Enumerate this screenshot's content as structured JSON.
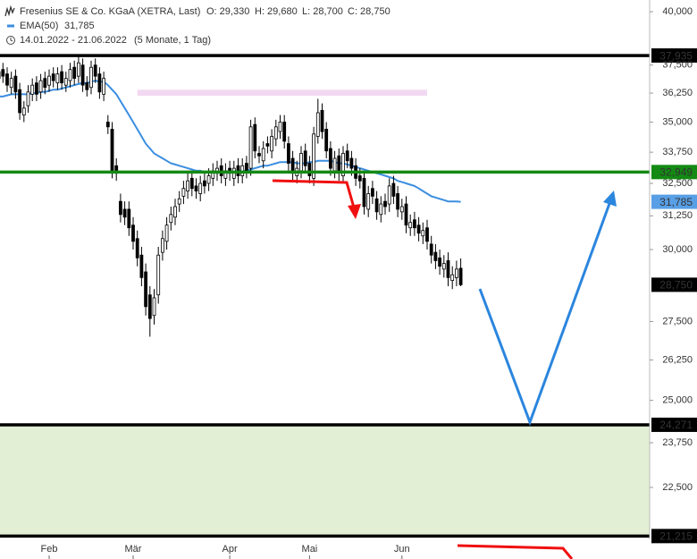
{
  "chart_data": {
    "type": "candlestick",
    "title": "Fresenius SE & Co. KGaA (XETRA, Last)",
    "ohlc_labels": [
      "O: 29,330",
      "H: 29,680",
      "L: 28,700",
      "C: 28,750"
    ],
    "date_range": "14.01.2022 - 21.06.2022",
    "period": "(5 Monate, 1 Tag)",
    "categories": [
      null,
      null,
      null,
      null,
      null,
      null,
      null,
      null,
      null,
      null,
      null,
      null,
      "Feb",
      null,
      null,
      null,
      null,
      null,
      null,
      null,
      null,
      null,
      null,
      null,
      null,
      null,
      null,
      null,
      null,
      null,
      null,
      null,
      "Mär",
      null,
      null,
      null,
      null,
      null,
      null,
      null,
      null,
      null,
      null,
      null,
      null,
      null,
      null,
      null,
      null,
      null,
      null,
      null,
      null,
      null,
      null,
      "Apr",
      null,
      null,
      null,
      null,
      null,
      null,
      null,
      null,
      null,
      null,
      null,
      null,
      null,
      null,
      null,
      null,
      null,
      null,
      "Mai",
      null,
      null,
      null,
      null,
      null,
      null,
      null,
      null,
      null,
      null,
      null,
      null,
      null,
      null,
      null,
      null,
      null,
      null,
      null,
      null,
      null,
      "Jun",
      null,
      null,
      null,
      null,
      null,
      null,
      null,
      null,
      null,
      null,
      null,
      null,
      null,
      null
    ],
    "open": [
      36.9,
      37.3,
      37.1,
      36.5,
      37.0,
      36.4,
      35.3,
      35.7,
      36.2,
      36.7,
      36.3,
      36.9,
      36.6,
      37.1,
      36.7,
      37.2,
      36.6,
      36.8,
      37.4,
      37.0,
      37.5,
      36.7,
      36.5,
      37.5,
      37.1,
      36.2,
      35.0,
      34.7,
      33.2,
      31.8,
      31.5,
      31.5,
      30.9,
      30.4,
      29.8,
      29.2,
      28.4,
      27.7,
      28.4,
      29.9,
      30.3,
      31.0,
      31.2,
      31.7,
      32.0,
      32.2,
      32.7,
      32.4,
      32.1,
      32.6,
      32.5,
      32.7,
      32.9,
      33.2,
      32.7,
      33.1,
      32.7,
      33.2,
      32.8,
      33.3,
      33.1,
      34.9,
      33.7,
      33.4,
      34.1,
      33.8,
      34.3,
      34.6,
      35.0,
      34.1,
      33.5,
      32.8,
      33.0,
      33.8,
      33.3,
      32.7,
      34.4,
      35.5,
      34.7,
      33.9,
      33.0,
      33.6,
      32.8,
      33.8,
      33.5,
      33.2,
      32.8,
      32.7,
      31.5,
      32.3,
      31.9,
      31.3,
      31.8,
      31.7,
      32.5,
      32.1,
      31.4,
      31.7,
      30.8,
      31.1,
      30.9,
      30.5,
      30.8,
      30.2,
      29.9,
      29.7,
      29.3,
      29.6,
      28.9,
      29.0,
      29.33
    ],
    "high": [
      37.5,
      37.6,
      37.4,
      37.2,
      37.3,
      36.7,
      35.9,
      36.6,
      36.9,
      37.0,
      37.1,
      37.2,
      37.3,
      37.4,
      37.4,
      37.5,
      37.2,
      37.6,
      37.7,
      37.9,
      37.8,
      37.0,
      37.7,
      37.8,
      37.4,
      37.2,
      35.3,
      35.0,
      33.5,
      32.1,
      31.8,
      31.8,
      31.2,
      30.7,
      30.1,
      29.5,
      28.7,
      28.6,
      30.1,
      30.7,
      31.2,
      31.6,
      31.9,
      32.2,
      32.6,
      32.9,
      33.0,
      32.7,
      32.8,
      32.9,
      33.1,
      33.3,
      33.4,
      33.5,
      33.3,
      33.4,
      33.4,
      33.5,
      33.5,
      33.6,
      35.1,
      35.2,
      34.0,
      34.2,
      34.4,
      34.7,
      35.1,
      35.3,
      35.3,
      34.4,
      33.8,
      33.4,
      34.0,
      34.1,
      33.6,
      34.8,
      36.0,
      35.8,
      35.0,
      34.2,
      33.8,
      33.9,
      34.0,
      34.1,
      33.8,
      33.5,
      33.1,
      33.0,
      32.4,
      32.6,
      32.2,
      32.0,
      32.1,
      32.7,
      32.8,
      32.4,
      31.9,
      32.0,
      31.3,
      31.4,
      31.2,
      31.0,
      31.1,
      30.5,
      30.2,
      30.0,
      29.8,
      29.9,
      29.4,
      29.6,
      29.68
    ],
    "low": [
      36.6,
      36.7,
      36.3,
      36.2,
      36.0,
      35.1,
      35.0,
      35.4,
      35.9,
      35.9,
      36.0,
      36.2,
      36.3,
      36.5,
      36.4,
      36.4,
      36.3,
      36.5,
      36.6,
      36.7,
      36.3,
      36.1,
      36.2,
      36.7,
      36.0,
      35.9,
      34.5,
      32.7,
      32.6,
      31.0,
      30.9,
      30.5,
      30.0,
      29.4,
      28.7,
      27.7,
      27.0,
      27.4,
      28.1,
      29.6,
      30.0,
      30.7,
      30.9,
      31.4,
      31.7,
      31.9,
      32.0,
      31.9,
      31.8,
      32.1,
      32.2,
      32.4,
      32.6,
      32.5,
      32.4,
      32.6,
      32.4,
      32.5,
      32.5,
      32.7,
      32.8,
      33.5,
      33.3,
      33.1,
      33.7,
      33.5,
      34.0,
      34.3,
      33.9,
      33.0,
      32.6,
      32.5,
      32.7,
      32.9,
      32.5,
      32.4,
      34.1,
      34.3,
      33.5,
      32.8,
      32.7,
      32.6,
      32.5,
      33.1,
      32.8,
      32.4,
      32.3,
      31.3,
      31.2,
      31.7,
      31.1,
      31.0,
      31.3,
      31.4,
      31.7,
      31.2,
      31.1,
      30.6,
      30.5,
      30.5,
      30.3,
      30.2,
      30.0,
      29.5,
      29.3,
      29.1,
      29.0,
      28.7,
      28.6,
      28.7,
      28.7
    ],
    "close": [
      37.2,
      37.0,
      36.6,
      36.9,
      36.3,
      35.4,
      35.6,
      36.3,
      36.6,
      36.2,
      36.8,
      36.5,
      37.0,
      36.8,
      37.1,
      36.7,
      36.9,
      37.3,
      36.9,
      37.6,
      36.6,
      36.4,
      37.4,
      37.0,
      36.3,
      36.9,
      34.8,
      33.0,
      32.9,
      31.3,
      31.2,
      30.8,
      30.3,
      29.7,
      29.0,
      28.0,
      27.6,
      28.3,
      29.8,
      30.4,
      30.9,
      31.3,
      31.6,
      31.9,
      32.3,
      32.6,
      32.3,
      32.2,
      32.5,
      32.4,
      32.8,
      33.0,
      33.1,
      32.8,
      33.0,
      32.9,
      33.1,
      32.8,
      33.2,
      33.0,
      34.8,
      33.8,
      33.6,
      33.9,
      34.0,
      34.4,
      34.8,
      35.0,
      34.2,
      33.3,
      32.9,
      33.1,
      33.7,
      33.2,
      32.8,
      34.5,
      35.4,
      34.6,
      33.8,
      33.1,
      33.5,
      32.9,
      33.7,
      33.4,
      33.1,
      32.7,
      32.6,
      31.6,
      32.1,
      32.0,
      31.4,
      31.7,
      31.6,
      32.4,
      32.0,
      31.5,
      31.6,
      30.9,
      31.0,
      30.8,
      30.6,
      30.7,
      30.3,
      29.8,
      29.6,
      29.4,
      29.5,
      29.0,
      29.1,
      29.3,
      28.75
    ],
    "last_label": "28,750",
    "series": [
      {
        "name": "EMA(50)",
        "color": "#3b8ee0",
        "value_label": "31,785",
        "values": [
          36.1,
          36.1,
          36.15,
          36.2,
          36.2,
          36.2,
          36.2,
          36.2,
          36.25,
          36.25,
          36.3,
          36.3,
          36.35,
          36.4,
          36.4,
          36.45,
          36.5,
          36.55,
          36.6,
          36.65,
          36.7,
          36.7,
          36.75,
          36.8,
          36.75,
          36.75,
          36.6,
          36.4,
          36.2,
          35.9,
          35.6,
          35.3,
          35.0,
          34.7,
          34.4,
          34.1,
          33.9,
          33.7,
          33.6,
          33.5,
          33.4,
          33.3,
          33.25,
          33.2,
          33.15,
          33.1,
          33.05,
          33.0,
          33.0,
          32.95,
          32.95,
          32.95,
          32.95,
          32.95,
          32.95,
          32.95,
          32.95,
          33.0,
          33.0,
          33.0,
          33.05,
          33.1,
          33.15,
          33.2,
          33.2,
          33.25,
          33.3,
          33.35,
          33.35,
          33.35,
          33.35,
          33.3,
          33.3,
          33.3,
          33.35,
          33.35,
          33.4,
          33.4,
          33.4,
          33.4,
          33.35,
          33.3,
          33.3,
          33.25,
          33.2,
          33.15,
          33.1,
          33.05,
          33.0,
          32.95,
          32.9,
          32.85,
          32.8,
          32.75,
          32.7,
          32.6,
          32.55,
          32.5,
          32.45,
          32.4,
          32.3,
          32.2,
          32.1,
          32.0,
          31.95,
          31.9,
          31.85,
          31.8,
          31.8,
          31.8,
          31.785
        ]
      }
    ],
    "log_scale": true,
    "ylim": [
      21.2,
      40.57
    ],
    "yticks": [
      {
        "value": 40,
        "label": "40,000"
      },
      {
        "value": 37.5,
        "label": "37,500"
      },
      {
        "value": 36.25,
        "label": "36,250"
      },
      {
        "value": 35,
        "label": "35,000"
      },
      {
        "value": 33.75,
        "label": "33,750"
      },
      {
        "value": 32.5,
        "label": "32,500"
      },
      {
        "value": 31.25,
        "label": "31,250"
      },
      {
        "value": 30,
        "label": "30,000"
      },
      {
        "value": 27.5,
        "label": "27,500"
      },
      {
        "value": 26.25,
        "label": "26,250"
      },
      {
        "value": 25,
        "label": "25,000"
      },
      {
        "value": 23.75,
        "label": "23,750"
      },
      {
        "value": 22.5,
        "label": "22,500"
      }
    ],
    "zones": [
      {
        "from": 21.215,
        "to": 24.271,
        "color": "#e2efd4"
      },
      {
        "from": 36.13,
        "to": 36.4,
        "color": "#f2d9f2"
      }
    ],
    "levels": [
      {
        "value": 37.935,
        "label": "37,935",
        "color": "#000000"
      },
      {
        "value": 32.949,
        "label": "32,949",
        "color": "#138a13"
      },
      {
        "value": 24.271,
        "label": "24,271",
        "color": "#000000"
      },
      {
        "value": 21.215,
        "label": "21,215",
        "color": "#000000"
      }
    ]
  }
}
